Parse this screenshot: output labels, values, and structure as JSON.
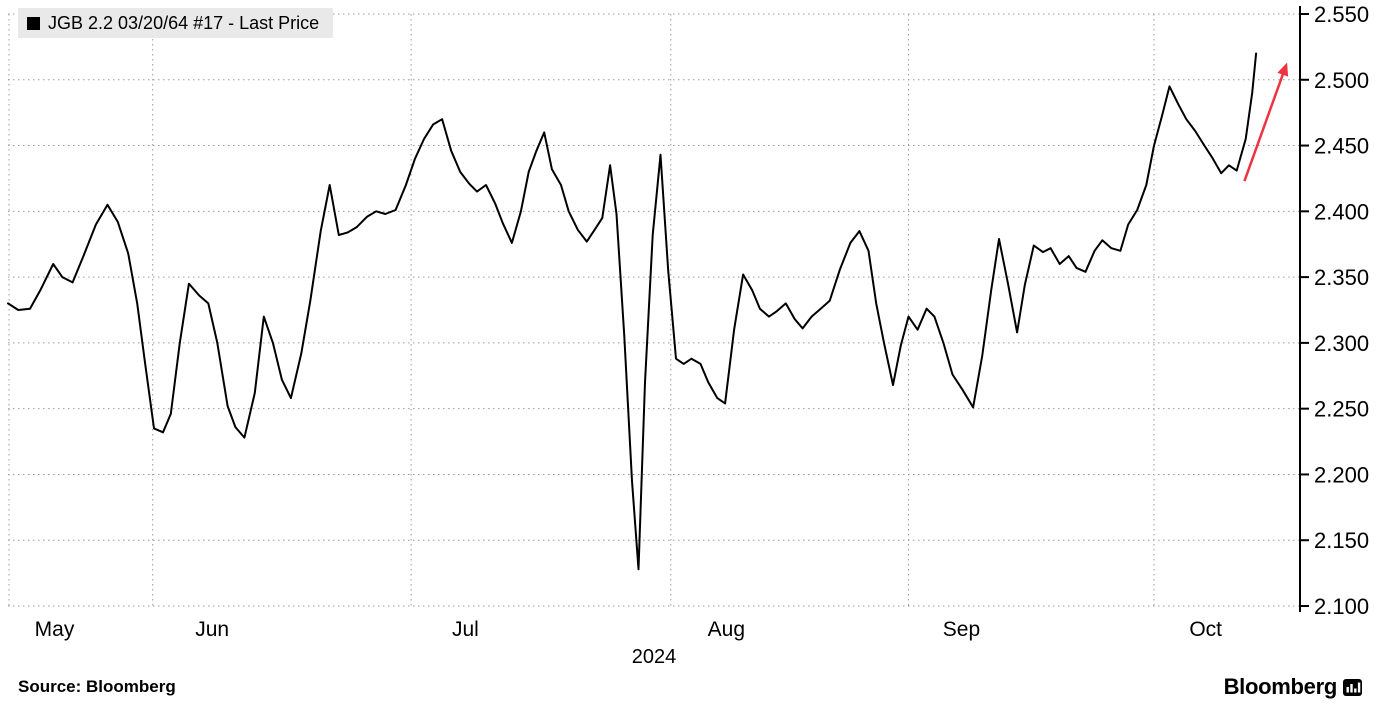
{
  "legend": {
    "label": "JGB 2.2 03/20/64 #17 - Last Price"
  },
  "footer": {
    "source": "Source: Bloomberg",
    "brand": "Bloomberg"
  },
  "chart_data": {
    "type": "line",
    "title": "",
    "xlabel": "",
    "ylabel": "",
    "year_label": "2024",
    "ylim": [
      2.1,
      2.55
    ],
    "yticks": [
      2.55,
      2.5,
      2.45,
      2.4,
      2.35,
      2.3,
      2.25,
      2.2,
      2.15,
      2.1
    ],
    "grid": true,
    "axis_side": "right",
    "legend_position": "top-left",
    "line_color": "#000000",
    "grid_color": "#9a9a9a",
    "month_ticks": [
      {
        "label": "May",
        "x": 0.036
      },
      {
        "label": "Jun",
        "x": 0.158
      },
      {
        "label": "Jul",
        "x": 0.354
      },
      {
        "label": "Aug",
        "x": 0.556
      },
      {
        "label": "Sep",
        "x": 0.738
      },
      {
        "label": "Oct",
        "x": 0.927
      }
    ],
    "grid_x": [
      0.0008,
      0.112,
      0.312,
      0.513,
      0.697,
      0.887
    ],
    "series": [
      {
        "name": "JGB 2.2 03/20/64 #17 - Last Price",
        "color": "#000000",
        "points": [
          [
            0.0,
            2.33
          ],
          [
            0.008,
            2.325
          ],
          [
            0.017,
            2.326
          ],
          [
            0.025,
            2.34
          ],
          [
            0.035,
            2.36
          ],
          [
            0.042,
            2.35
          ],
          [
            0.05,
            2.346
          ],
          [
            0.058,
            2.365
          ],
          [
            0.068,
            2.39
          ],
          [
            0.077,
            2.405
          ],
          [
            0.085,
            2.392
          ],
          [
            0.093,
            2.368
          ],
          [
            0.1,
            2.33
          ],
          [
            0.106,
            2.285
          ],
          [
            0.113,
            2.235
          ],
          [
            0.12,
            2.232
          ],
          [
            0.126,
            2.246
          ],
          [
            0.133,
            2.3
          ],
          [
            0.14,
            2.345
          ],
          [
            0.148,
            2.336
          ],
          [
            0.155,
            2.33
          ],
          [
            0.162,
            2.3
          ],
          [
            0.17,
            2.252
          ],
          [
            0.176,
            2.236
          ],
          [
            0.183,
            2.228
          ],
          [
            0.191,
            2.262
          ],
          [
            0.198,
            2.32
          ],
          [
            0.205,
            2.3
          ],
          [
            0.212,
            2.272
          ],
          [
            0.219,
            2.258
          ],
          [
            0.227,
            2.292
          ],
          [
            0.234,
            2.332
          ],
          [
            0.242,
            2.385
          ],
          [
            0.249,
            2.42
          ],
          [
            0.256,
            2.382
          ],
          [
            0.263,
            2.384
          ],
          [
            0.27,
            2.388
          ],
          [
            0.278,
            2.396
          ],
          [
            0.285,
            2.4
          ],
          [
            0.292,
            2.398
          ],
          [
            0.3,
            2.401
          ],
          [
            0.308,
            2.42
          ],
          [
            0.315,
            2.44
          ],
          [
            0.322,
            2.455
          ],
          [
            0.329,
            2.466
          ],
          [
            0.336,
            2.47
          ],
          [
            0.343,
            2.446
          ],
          [
            0.35,
            2.43
          ],
          [
            0.357,
            2.421
          ],
          [
            0.363,
            2.415
          ],
          [
            0.37,
            2.42
          ],
          [
            0.377,
            2.406
          ],
          [
            0.383,
            2.391
          ],
          [
            0.39,
            2.376
          ],
          [
            0.397,
            2.4
          ],
          [
            0.403,
            2.43
          ],
          [
            0.409,
            2.446
          ],
          [
            0.415,
            2.46
          ],
          [
            0.421,
            2.432
          ],
          [
            0.428,
            2.42
          ],
          [
            0.434,
            2.4
          ],
          [
            0.441,
            2.386
          ],
          [
            0.448,
            2.377
          ],
          [
            0.454,
            2.386
          ],
          [
            0.46,
            2.395
          ],
          [
            0.466,
            2.435
          ],
          [
            0.471,
            2.398
          ],
          [
            0.477,
            2.305
          ],
          [
            0.483,
            2.195
          ],
          [
            0.488,
            2.128
          ],
          [
            0.493,
            2.27
          ],
          [
            0.499,
            2.382
          ],
          [
            0.505,
            2.443
          ],
          [
            0.511,
            2.355
          ],
          [
            0.517,
            2.288
          ],
          [
            0.523,
            2.284
          ],
          [
            0.529,
            2.288
          ],
          [
            0.536,
            2.284
          ],
          [
            0.542,
            2.27
          ],
          [
            0.549,
            2.258
          ],
          [
            0.555,
            2.254
          ],
          [
            0.562,
            2.31
          ],
          [
            0.569,
            2.352
          ],
          [
            0.576,
            2.34
          ],
          [
            0.582,
            2.326
          ],
          [
            0.589,
            2.32
          ],
          [
            0.595,
            2.324
          ],
          [
            0.602,
            2.33
          ],
          [
            0.609,
            2.318
          ],
          [
            0.615,
            2.311
          ],
          [
            0.622,
            2.32
          ],
          [
            0.629,
            2.326
          ],
          [
            0.636,
            2.332
          ],
          [
            0.644,
            2.356
          ],
          [
            0.652,
            2.376
          ],
          [
            0.659,
            2.385
          ],
          [
            0.666,
            2.37
          ],
          [
            0.672,
            2.33
          ],
          [
            0.678,
            2.3
          ],
          [
            0.685,
            2.268
          ],
          [
            0.691,
            2.298
          ],
          [
            0.697,
            2.32
          ],
          [
            0.704,
            2.31
          ],
          [
            0.711,
            2.326
          ],
          [
            0.717,
            2.32
          ],
          [
            0.724,
            2.3
          ],
          [
            0.731,
            2.276
          ],
          [
            0.739,
            2.264
          ],
          [
            0.747,
            2.251
          ],
          [
            0.754,
            2.29
          ],
          [
            0.761,
            2.34
          ],
          [
            0.767,
            2.379
          ],
          [
            0.774,
            2.345
          ],
          [
            0.781,
            2.308
          ],
          [
            0.787,
            2.344
          ],
          [
            0.794,
            2.374
          ],
          [
            0.801,
            2.369
          ],
          [
            0.807,
            2.372
          ],
          [
            0.814,
            2.36
          ],
          [
            0.821,
            2.366
          ],
          [
            0.827,
            2.357
          ],
          [
            0.834,
            2.354
          ],
          [
            0.841,
            2.37
          ],
          [
            0.847,
            2.378
          ],
          [
            0.854,
            2.372
          ],
          [
            0.861,
            2.37
          ],
          [
            0.867,
            2.39
          ],
          [
            0.874,
            2.401
          ],
          [
            0.881,
            2.42
          ],
          [
            0.887,
            2.45
          ],
          [
            0.893,
            2.472
          ],
          [
            0.899,
            2.495
          ],
          [
            0.906,
            2.481
          ],
          [
            0.912,
            2.47
          ],
          [
            0.919,
            2.461
          ],
          [
            0.926,
            2.45
          ],
          [
            0.932,
            2.441
          ],
          [
            0.939,
            2.429
          ],
          [
            0.945,
            2.435
          ],
          [
            0.951,
            2.431
          ],
          [
            0.958,
            2.455
          ],
          [
            0.963,
            2.49
          ],
          [
            0.966,
            2.52
          ]
        ]
      }
    ],
    "annotation_arrow": {
      "type": "arrow",
      "from": [
        0.957,
        2.423
      ],
      "to": [
        0.99,
        2.513
      ],
      "color": "#ee3341"
    }
  }
}
